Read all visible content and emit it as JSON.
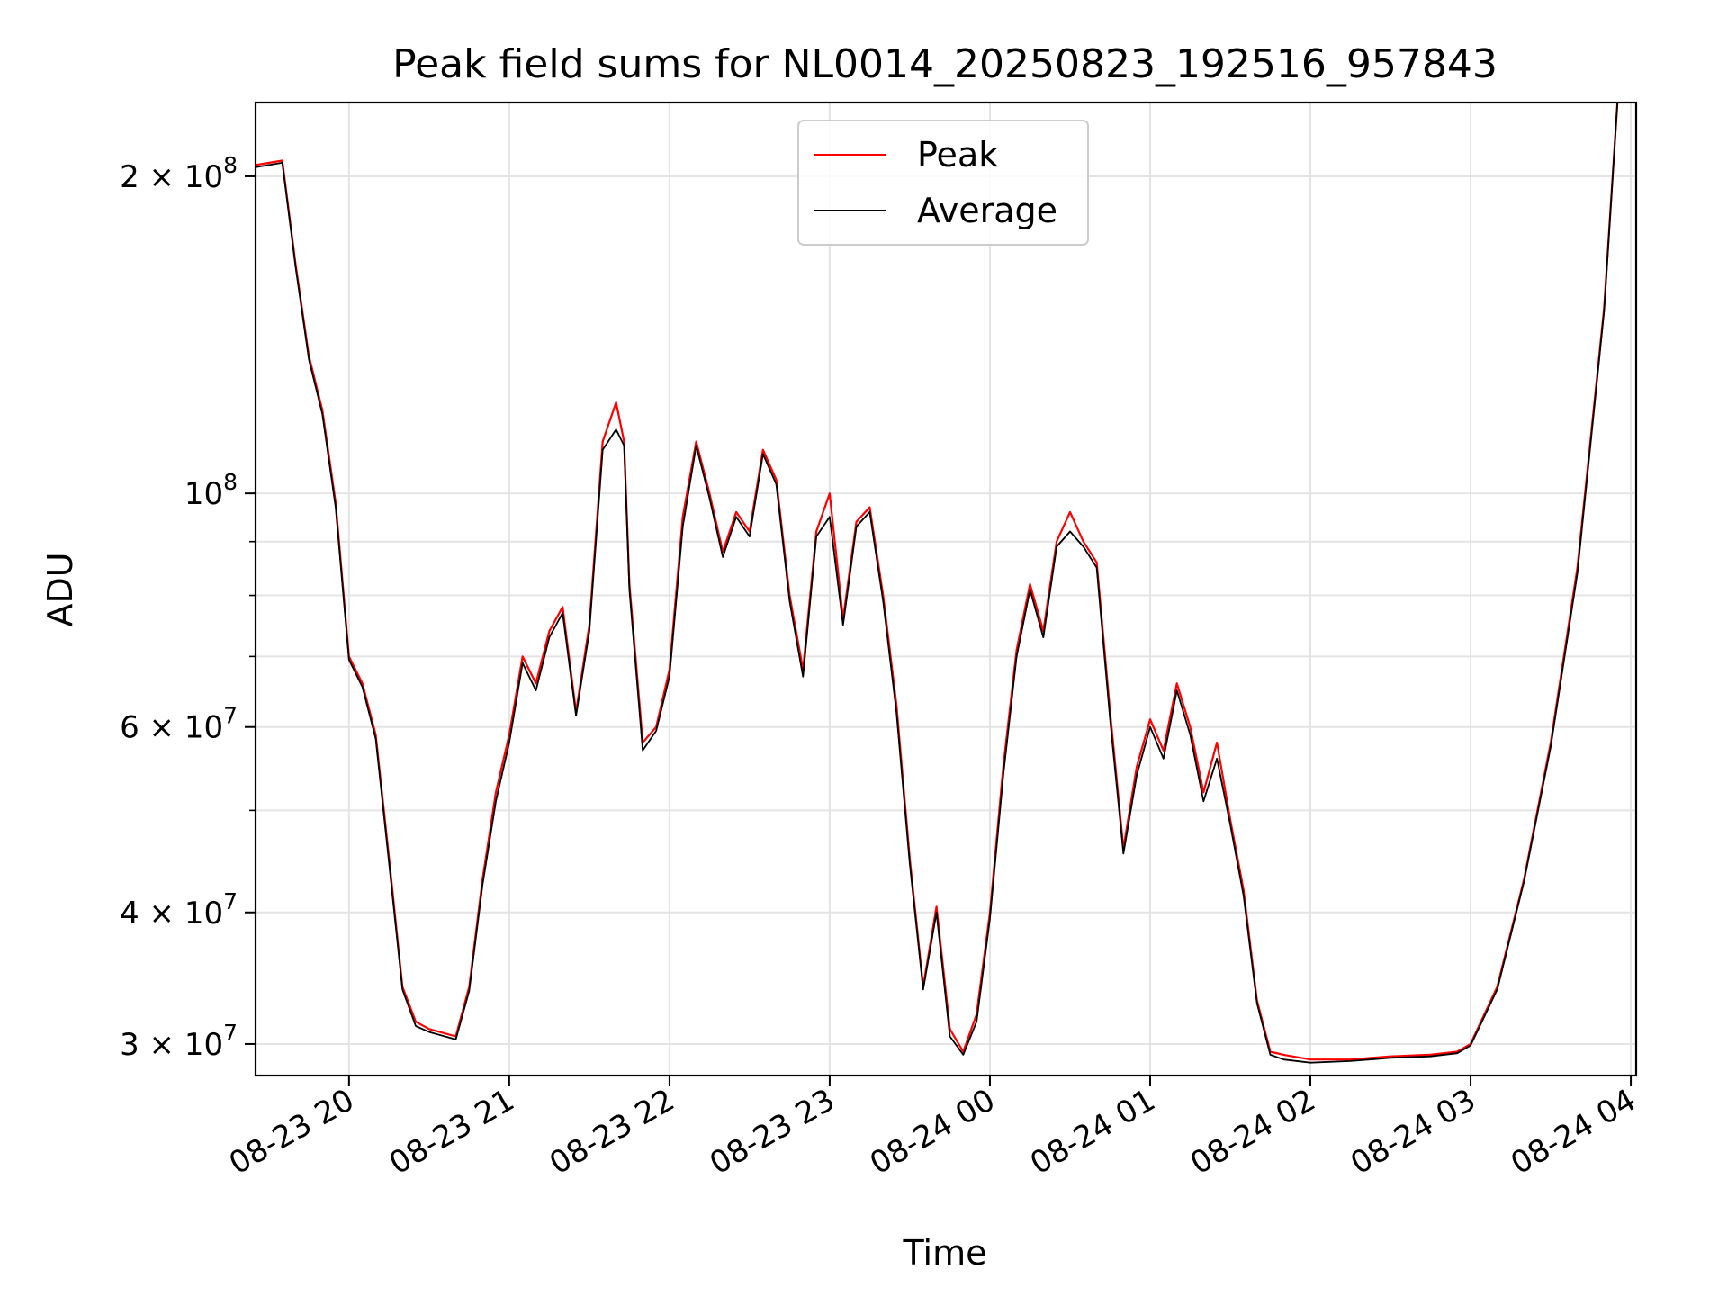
{
  "chart_data": {
    "type": "line",
    "title": "Peak field sums for NL0014_20250823_192516_957843",
    "xlabel": "Time",
    "ylabel": "ADU",
    "x_scale": "time",
    "y_scale": "log",
    "x_range": [
      "2025-08-23T19:25",
      "2025-08-24T04:02"
    ],
    "ylim": [
      28000000,
      235000000
    ],
    "grid": true,
    "legend_position": "top-center",
    "x_ticks": [
      {
        "value": "2025-08-23T20:00",
        "label": "08-23 20"
      },
      {
        "value": "2025-08-23T21:00",
        "label": "08-23 21"
      },
      {
        "value": "2025-08-23T22:00",
        "label": "08-23 22"
      },
      {
        "value": "2025-08-23T23:00",
        "label": "08-23 23"
      },
      {
        "value": "2025-08-24T00:00",
        "label": "08-24 00"
      },
      {
        "value": "2025-08-24T01:00",
        "label": "08-24 01"
      },
      {
        "value": "2025-08-24T02:00",
        "label": "08-24 02"
      },
      {
        "value": "2025-08-24T03:00",
        "label": "08-24 03"
      },
      {
        "value": "2025-08-24T04:00",
        "label": "08-24 04"
      }
    ],
    "y_ticks_major": [
      {
        "value": 30000000,
        "mantissa": "3",
        "exp": "7"
      },
      {
        "value": 40000000,
        "mantissa": "4",
        "exp": "7"
      },
      {
        "value": 60000000,
        "mantissa": "6",
        "exp": "7"
      },
      {
        "value": 100000000,
        "mantissa": "",
        "exp": "8"
      },
      {
        "value": 200000000,
        "mantissa": "2",
        "exp": "8"
      }
    ],
    "y_ticks_minor": [
      50000000,
      70000000,
      80000000,
      90000000
    ],
    "series": [
      {
        "name": "Peak",
        "color": "#ff0000",
        "x": [
          "2025-08-23T19:25",
          "2025-08-23T19:35",
          "2025-08-23T19:40",
          "2025-08-23T19:45",
          "2025-08-23T19:50",
          "2025-08-23T19:55",
          "2025-08-23T20:00",
          "2025-08-23T20:05",
          "2025-08-23T20:10",
          "2025-08-23T20:15",
          "2025-08-23T20:20",
          "2025-08-23T20:25",
          "2025-08-23T20:30",
          "2025-08-23T20:40",
          "2025-08-23T20:45",
          "2025-08-23T20:50",
          "2025-08-23T20:55",
          "2025-08-23T21:00",
          "2025-08-23T21:05",
          "2025-08-23T21:10",
          "2025-08-23T21:15",
          "2025-08-23T21:20",
          "2025-08-23T21:25",
          "2025-08-23T21:30",
          "2025-08-23T21:35",
          "2025-08-23T21:40",
          "2025-08-23T21:43",
          "2025-08-23T21:45",
          "2025-08-23T21:50",
          "2025-08-23T21:55",
          "2025-08-23T22:00",
          "2025-08-23T22:05",
          "2025-08-23T22:10",
          "2025-08-23T22:15",
          "2025-08-23T22:20",
          "2025-08-23T22:25",
          "2025-08-23T22:30",
          "2025-08-23T22:35",
          "2025-08-23T22:40",
          "2025-08-23T22:45",
          "2025-08-23T22:50",
          "2025-08-23T22:55",
          "2025-08-23T23:00",
          "2025-08-23T23:05",
          "2025-08-23T23:10",
          "2025-08-23T23:15",
          "2025-08-23T23:20",
          "2025-08-23T23:25",
          "2025-08-23T23:30",
          "2025-08-23T23:35",
          "2025-08-23T23:40",
          "2025-08-23T23:45",
          "2025-08-23T23:50",
          "2025-08-23T23:55",
          "2025-08-24T00:00",
          "2025-08-24T00:05",
          "2025-08-24T00:10",
          "2025-08-24T00:15",
          "2025-08-24T00:20",
          "2025-08-24T00:25",
          "2025-08-24T00:30",
          "2025-08-24T00:35",
          "2025-08-24T00:40",
          "2025-08-24T00:45",
          "2025-08-24T00:50",
          "2025-08-24T00:55",
          "2025-08-24T01:00",
          "2025-08-24T01:05",
          "2025-08-24T01:10",
          "2025-08-24T01:15",
          "2025-08-24T01:20",
          "2025-08-24T01:25",
          "2025-08-24T01:30",
          "2025-08-24T01:35",
          "2025-08-24T01:40",
          "2025-08-24T01:45",
          "2025-08-24T01:50",
          "2025-08-24T02:00",
          "2025-08-24T02:15",
          "2025-08-24T02:30",
          "2025-08-24T02:45",
          "2025-08-24T02:55",
          "2025-08-24T03:00",
          "2025-08-24T03:10",
          "2025-08-24T03:20",
          "2025-08-24T03:30",
          "2025-08-24T03:40",
          "2025-08-24T03:50",
          "2025-08-24T03:55"
        ],
        "values": [
          205000000,
          207000000,
          165000000,
          135000000,
          120000000,
          98000000,
          70000000,
          66000000,
          59000000,
          45000000,
          34000000,
          31500000,
          31000000,
          30500000,
          34000000,
          43000000,
          52000000,
          59000000,
          70000000,
          66000000,
          74000000,
          78000000,
          62000000,
          75000000,
          112000000,
          122000000,
          112000000,
          82000000,
          58000000,
          60000000,
          68000000,
          95000000,
          112000000,
          100000000,
          88000000,
          96000000,
          92000000,
          110000000,
          103000000,
          80000000,
          68000000,
          92000000,
          100000000,
          76000000,
          94000000,
          97000000,
          80000000,
          63000000,
          45000000,
          34000000,
          40500000,
          31000000,
          29500000,
          32000000,
          40000000,
          55000000,
          71000000,
          82000000,
          74000000,
          90000000,
          96000000,
          90000000,
          86000000,
          62000000,
          46000000,
          55000000,
          61000000,
          57000000,
          66000000,
          60000000,
          52000000,
          58000000,
          49000000,
          42000000,
          33000000,
          29500000,
          29300000,
          29000000,
          29000000,
          29200000,
          29300000,
          29500000,
          30000000,
          34000000,
          43000000,
          58000000,
          85000000,
          150000000,
          235000000
        ]
      },
      {
        "name": "Average",
        "color": "#000000",
        "x": [
          "2025-08-23T19:25",
          "2025-08-23T19:35",
          "2025-08-23T19:40",
          "2025-08-23T19:45",
          "2025-08-23T19:50",
          "2025-08-23T19:55",
          "2025-08-23T20:00",
          "2025-08-23T20:05",
          "2025-08-23T20:10",
          "2025-08-23T20:15",
          "2025-08-23T20:20",
          "2025-08-23T20:25",
          "2025-08-23T20:30",
          "2025-08-23T20:40",
          "2025-08-23T20:45",
          "2025-08-23T20:50",
          "2025-08-23T20:55",
          "2025-08-23T21:00",
          "2025-08-23T21:05",
          "2025-08-23T21:10",
          "2025-08-23T21:15",
          "2025-08-23T21:20",
          "2025-08-23T21:25",
          "2025-08-23T21:30",
          "2025-08-23T21:35",
          "2025-08-23T21:40",
          "2025-08-23T21:43",
          "2025-08-23T21:45",
          "2025-08-23T21:50",
          "2025-08-23T21:55",
          "2025-08-23T22:00",
          "2025-08-23T22:05",
          "2025-08-23T22:10",
          "2025-08-23T22:15",
          "2025-08-23T22:20",
          "2025-08-23T22:25",
          "2025-08-23T22:30",
          "2025-08-23T22:35",
          "2025-08-23T22:40",
          "2025-08-23T22:45",
          "2025-08-23T22:50",
          "2025-08-23T22:55",
          "2025-08-23T23:00",
          "2025-08-23T23:05",
          "2025-08-23T23:10",
          "2025-08-23T23:15",
          "2025-08-23T23:20",
          "2025-08-23T23:25",
          "2025-08-23T23:30",
          "2025-08-23T23:35",
          "2025-08-23T23:40",
          "2025-08-23T23:45",
          "2025-08-23T23:50",
          "2025-08-23T23:55",
          "2025-08-24T00:00",
          "2025-08-24T00:05",
          "2025-08-24T00:10",
          "2025-08-24T00:15",
          "2025-08-24T00:20",
          "2025-08-24T00:25",
          "2025-08-24T00:30",
          "2025-08-24T00:35",
          "2025-08-24T00:40",
          "2025-08-24T00:45",
          "2025-08-24T00:50",
          "2025-08-24T00:55",
          "2025-08-24T01:00",
          "2025-08-24T01:05",
          "2025-08-24T01:10",
          "2025-08-24T01:15",
          "2025-08-24T01:20",
          "2025-08-24T01:25",
          "2025-08-24T01:30",
          "2025-08-24T01:35",
          "2025-08-24T01:40",
          "2025-08-24T01:45",
          "2025-08-24T01:50",
          "2025-08-24T02:00",
          "2025-08-24T02:15",
          "2025-08-24T02:30",
          "2025-08-24T02:45",
          "2025-08-24T02:55",
          "2025-08-24T03:00",
          "2025-08-24T03:10",
          "2025-08-24T03:20",
          "2025-08-24T03:30",
          "2025-08-24T03:40",
          "2025-08-24T03:50",
          "2025-08-24T03:55"
        ],
        "values": [
          204000000,
          206000000,
          164000000,
          134000000,
          119000000,
          97000000,
          69500000,
          65500000,
          58500000,
          44500000,
          33800000,
          31200000,
          30800000,
          30300000,
          33700000,
          42500000,
          51000000,
          58000000,
          69000000,
          65000000,
          73000000,
          77000000,
          61500000,
          74000000,
          110000000,
          115000000,
          111000000,
          81000000,
          57000000,
          59500000,
          67000000,
          93000000,
          111000000,
          99000000,
          87000000,
          95000000,
          91000000,
          109000000,
          102000000,
          79000000,
          67000000,
          91000000,
          95000000,
          75000000,
          93000000,
          96000000,
          79000000,
          62000000,
          44500000,
          33800000,
          40000000,
          30500000,
          29300000,
          31500000,
          39500000,
          54000000,
          70000000,
          81000000,
          73000000,
          89000000,
          92000000,
          89000000,
          85000000,
          61000000,
          45500000,
          54000000,
          60000000,
          56000000,
          65000000,
          59000000,
          51000000,
          56000000,
          48500000,
          41500000,
          32800000,
          29300000,
          29000000,
          28800000,
          28900000,
          29100000,
          29200000,
          29400000,
          29900000,
          33800000,
          42800000,
          57500000,
          84000000,
          149000000,
          235000000
        ]
      }
    ]
  }
}
